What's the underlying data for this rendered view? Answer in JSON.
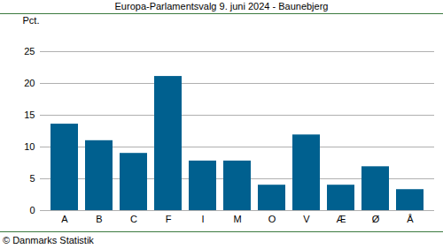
{
  "chart_data": {
    "type": "bar",
    "title": "Europa-Parlamentsvalg 9. juni 2024 - Baunebjerg",
    "y_label": "Pct.",
    "caption": "© Danmarks Statistik",
    "categories": [
      "A",
      "B",
      "C",
      "F",
      "I",
      "M",
      "O",
      "V",
      "Æ",
      "Ø",
      "Å"
    ],
    "values": [
      13.6,
      11.0,
      9.0,
      21.1,
      7.8,
      7.8,
      4.0,
      11.9,
      4.0,
      6.9,
      3.3
    ],
    "color": "#00608f",
    "ylim": [
      0,
      25
    ],
    "yticks": [
      0,
      5,
      10,
      15,
      20,
      25
    ],
    "grid": true
  }
}
